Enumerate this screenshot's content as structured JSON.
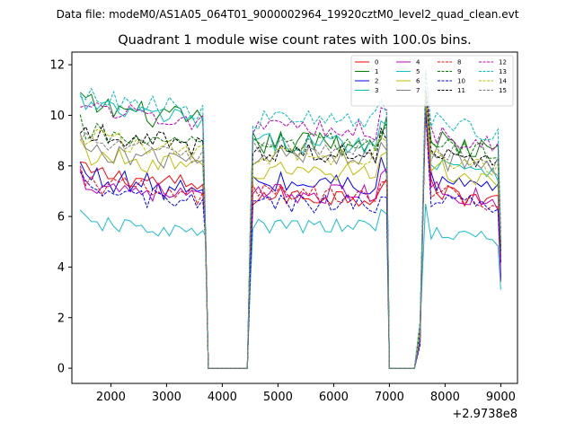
{
  "chart_data": {
    "type": "line",
    "suptitle": "Data file: modeM0/AS1A05_064T01_9000002964_19920cztM0_level2_quad_clean.evt",
    "title": "Quadrant 1 module wise count rates with 100.0s bins.",
    "xlabel": "",
    "ylabel": "",
    "x_offset_label": "+2.9738e8",
    "xlim": [
      1300,
      9300
    ],
    "ylim": [
      -0.6,
      12.5
    ],
    "x_ticks": [
      2000,
      3000,
      4000,
      5000,
      6000,
      7000,
      8000,
      9000
    ],
    "y_ticks": [
      0,
      2,
      4,
      6,
      8,
      10,
      12
    ],
    "legend_position": "top-right",
    "gaps": [
      [
        3700,
        4500
      ],
      [
        7000,
        7550
      ]
    ],
    "segments": [
      [
        1450,
        3650
      ],
      [
        4500,
        6950
      ],
      [
        7550,
        8950
      ]
    ],
    "series": [
      {
        "name": "0",
        "color": "#ff0000",
        "dash": "solid",
        "levels": [
          7.4,
          6.8,
          6.8
        ],
        "noise": 0.4,
        "peak": 10.4
      },
      {
        "name": "1",
        "color": "#008000",
        "dash": "solid",
        "levels": [
          10.0,
          8.9,
          8.7
        ],
        "noise": 0.5,
        "peak": 11.0
      },
      {
        "name": "2",
        "color": "#0000ff",
        "dash": "solid",
        "levels": [
          7.2,
          7.3,
          7.1
        ],
        "noise": 0.5,
        "peak": 10.8
      },
      {
        "name": "3",
        "color": "#00bfbf",
        "dash": "solid",
        "levels": [
          10.0,
          8.9,
          8.0
        ],
        "noise": 0.4,
        "peak": 10.9
      },
      {
        "name": "4",
        "color": "#bf00bf",
        "dash": "solid",
        "levels": [
          7.0,
          6.9,
          6.8
        ],
        "noise": 0.4,
        "peak": 10.6
      },
      {
        "name": "5",
        "color": "#17becf",
        "dash": "solid",
        "levels": [
          5.5,
          5.6,
          5.2
        ],
        "noise": 0.3,
        "peak": 6.5
      },
      {
        "name": "6",
        "color": "#bfbf00",
        "dash": "solid",
        "levels": [
          8.1,
          7.8,
          7.6
        ],
        "noise": 0.4,
        "peak": 10.7
      },
      {
        "name": "7",
        "color": "#808080",
        "dash": "solid",
        "levels": [
          8.3,
          8.4,
          8.0
        ],
        "noise": 0.4,
        "peak": 11.0
      },
      {
        "name": "8",
        "color": "#ff0000",
        "dash": "dashed",
        "levels": [
          7.0,
          6.9,
          6.7
        ],
        "noise": 0.4,
        "peak": 10.3
      },
      {
        "name": "9",
        "color": "#008000",
        "dash": "dashed",
        "levels": [
          9.0,
          8.9,
          8.6
        ],
        "noise": 0.4,
        "peak": 11.0
      },
      {
        "name": "10",
        "color": "#0000ff",
        "dash": "dashed",
        "levels": [
          6.7,
          6.5,
          6.5
        ],
        "noise": 0.4,
        "peak": 10.2
      },
      {
        "name": "11",
        "color": "#000000",
        "dash": "dashed",
        "levels": [
          9.0,
          8.5,
          8.4
        ],
        "noise": 0.4,
        "peak": 11.0
      },
      {
        "name": "12",
        "color": "#bf00bf",
        "dash": "dashed",
        "levels": [
          10.0,
          9.4,
          9.0
        ],
        "noise": 0.4,
        "peak": 11.0
      },
      {
        "name": "13",
        "color": "#00bfbf",
        "dash": "dashed",
        "levels": [
          10.4,
          9.8,
          9.5
        ],
        "noise": 0.4,
        "peak": 11.8
      },
      {
        "name": "14",
        "color": "#bfbf00",
        "dash": "dashed",
        "levels": [
          8.8,
          8.4,
          8.1
        ],
        "noise": 0.4,
        "peak": 10.9
      },
      {
        "name": "15",
        "color": "#808080",
        "dash": "dashed",
        "levels": [
          8.6,
          8.7,
          8.3
        ],
        "noise": 0.4,
        "peak": 10.5
      }
    ]
  }
}
